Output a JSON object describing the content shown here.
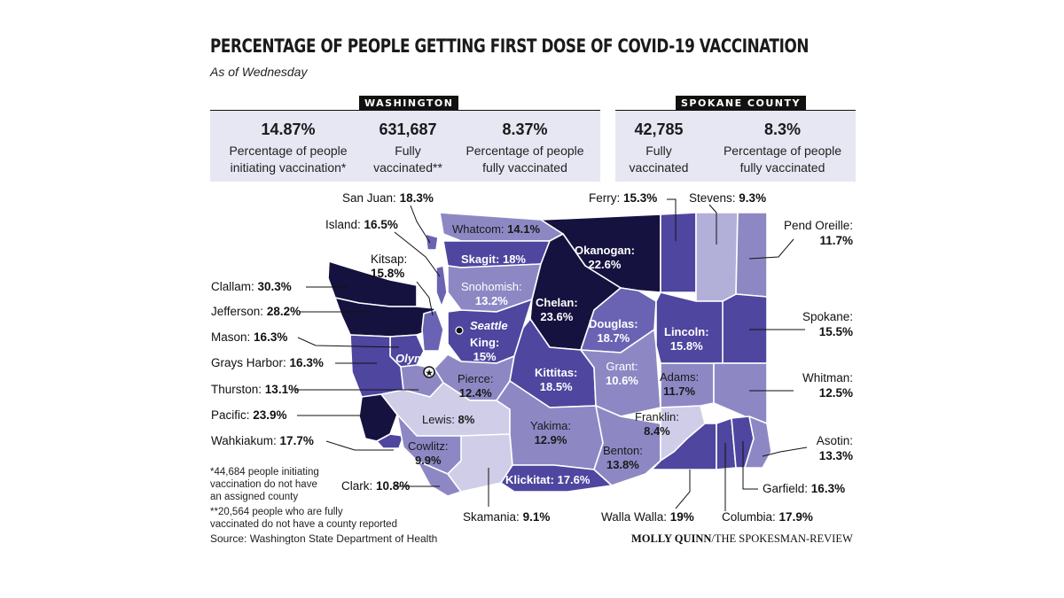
{
  "header": {
    "title": "PERCENTAGE OF PEOPLE GETTING FIRST DOSE OF COVID-19 VACCINATION",
    "subtitle": "As of Wednesday"
  },
  "washington": {
    "tag": "WASHINGTON",
    "stats": [
      {
        "value": "14.87%",
        "label_line1": "Percentage of people",
        "label_line2": "initiating vaccination*"
      },
      {
        "value": "631,687",
        "label_line1": "Fully",
        "label_line2": "vaccinated**"
      },
      {
        "value": "8.37%",
        "label_line1": "Percentage of people",
        "label_line2": "fully vaccinated"
      }
    ]
  },
  "spokane_county": {
    "tag": "SPOKANE COUNTY",
    "stats": [
      {
        "value": "42,785",
        "label_line1": "Fully",
        "label_line2": "vaccinated"
      },
      {
        "value": "8.3%",
        "label_line1": "Percentage of people",
        "label_line2": "fully vaccinated"
      }
    ]
  },
  "counties": {
    "san_juan": {
      "name": "San Juan:",
      "value": "18.3%"
    },
    "island": {
      "name": "Island:",
      "value": "16.5%"
    },
    "kitsap": {
      "name": "Kitsap:",
      "value": "15.8%"
    },
    "clallam": {
      "name": "Clallam:",
      "value": "30.3%"
    },
    "jefferson": {
      "name": "Jefferson:",
      "value": "28.2%"
    },
    "mason": {
      "name": "Mason:",
      "value": "16.3%"
    },
    "grays_harbor": {
      "name": "Grays Harbor:",
      "value": "16.3%"
    },
    "thurston": {
      "name": "Thurston:",
      "value": "13.1%"
    },
    "pacific": {
      "name": "Pacific:",
      "value": "23.9%"
    },
    "wahkiakum": {
      "name": "Wahkiakum:",
      "value": "17.7%"
    },
    "clark": {
      "name": "Clark:",
      "value": "10.8%"
    },
    "skamania": {
      "name": "Skamania:",
      "value": "9.1%"
    },
    "ferry": {
      "name": "Ferry:",
      "value": "15.3%"
    },
    "stevens": {
      "name": "Stevens:",
      "value": "9.3%"
    },
    "pend_oreille": {
      "name": "Pend Oreille:",
      "value": "11.7%"
    },
    "spokane": {
      "name": "Spokane:",
      "value": "15.5%"
    },
    "whitman": {
      "name": "Whitman:",
      "value": "12.5%"
    },
    "asotin": {
      "name": "Asotin:",
      "value": "13.3%"
    },
    "garfield": {
      "name": "Garfield:",
      "value": "16.3%"
    },
    "columbia": {
      "name": "Columbia:",
      "value": "17.9%"
    },
    "walla_walla": {
      "name": "Walla Walla:",
      "value": "19%"
    },
    "whatcom": {
      "name": "Whatcom:",
      "value": "14.1%"
    },
    "skagit": {
      "name": "Skagit:",
      "value": "18%"
    },
    "snohomish": {
      "name": "Snohomish:",
      "value": "13.2%"
    },
    "okanogan": {
      "name": "Okanogan:",
      "value": "22.6%"
    },
    "chelan": {
      "name": "Chelan:",
      "value": "23.6%"
    },
    "douglas": {
      "name": "Douglas:",
      "value": "18.7%"
    },
    "king": {
      "name": "King:",
      "value": "15%"
    },
    "pierce": {
      "name": "Pierce:",
      "value": "12.4%"
    },
    "kittitas": {
      "name": "Kittitas:",
      "value": "18.5%"
    },
    "grant": {
      "name": "Grant:",
      "value": "10.6%"
    },
    "lincoln": {
      "name": "Lincoln:",
      "value": "15.8%"
    },
    "adams": {
      "name": "Adams:",
      "value": "11.7%"
    },
    "lewis": {
      "name": "Lewis:",
      "value": "8%"
    },
    "yakima": {
      "name": "Yakima:",
      "value": "12.9%"
    },
    "cowlitz": {
      "name": "Cowlitz:",
      "value": "9.9%"
    },
    "franklin": {
      "name": "Franklin:",
      "value": "8.4%"
    },
    "benton": {
      "name": "Benton:",
      "value": "13.8%"
    },
    "klickitat": {
      "name": "Klickitat:",
      "value": "17.6%"
    }
  },
  "cities": {
    "seattle": "Seattle",
    "olympia": "Olympia"
  },
  "notes": {
    "note1": [
      "*44,684 people initiating",
      "vaccination do not have",
      "an assigned county"
    ],
    "note2": [
      "**20,564 people who are fully",
      "vaccinated do not have a county reported"
    ]
  },
  "source": "Source: Washington State Department of Health",
  "credit": {
    "author": "MOLLY QUINN",
    "outlet": "/THE SPOKESMAN-REVIEW"
  },
  "colors": {
    "darkest": "#16123f",
    "dark": "#4e469f",
    "mid": "#6a63b3",
    "light": "#8d88c4",
    "lighter": "#b2afd9",
    "palest": "#cfcde8",
    "stat_box": "#e7e6f3"
  }
}
